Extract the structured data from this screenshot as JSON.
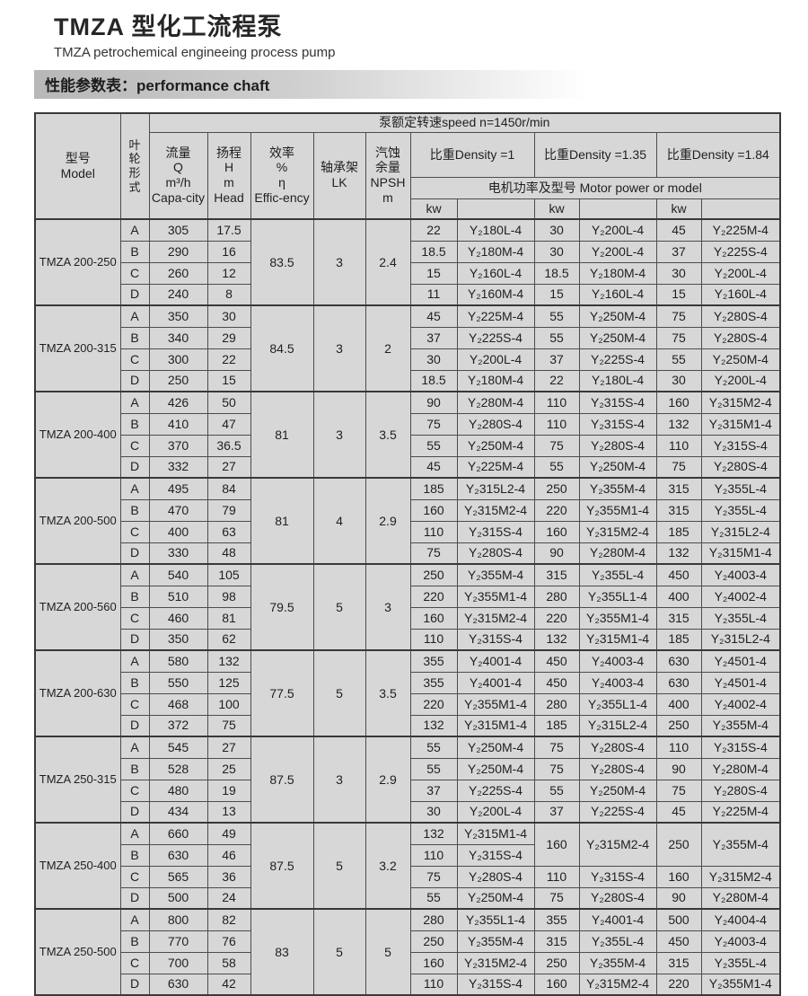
{
  "page": {
    "title": "TMZA 型化工流程泵",
    "subtitle": "TMZA petrochemical engineeing process pump",
    "section": "性能参数表：performance chaft"
  },
  "table": {
    "header": {
      "speed": "泵额定转速speed n=1450r/min",
      "model": "型号\nModel",
      "impeller": "叶\n轮\n形\n式",
      "capacity": "流量\nQ\nm³/h\nCapa-city",
      "head": "扬程\nH\nm\nHead",
      "efficiency": "效率\n%\nη\nEffic-ency",
      "bearing": "轴承架\nLK",
      "npsh": "汽蚀\n余量\nNPSH\nm",
      "density1": "比重Density =1",
      "density135": "比重Density =1.35",
      "density184": "比重Density =1.84",
      "motor": "电机功率及型号  Motor power or model",
      "kw": "kw",
      "model_col": ""
    },
    "blocks": [
      {
        "model": "TMZA 200-250",
        "eff": "83.5",
        "lk": "3",
        "npsh": "2.4",
        "rows": [
          {
            "imp": "A",
            "q": "305",
            "h": "17.5",
            "d1": [
              "22",
              "Y₂180L-4"
            ],
            "d135": [
              "30",
              "Y₂200L-4"
            ],
            "d184": [
              "45",
              "Y₂225M-4"
            ]
          },
          {
            "imp": "B",
            "q": "290",
            "h": "16",
            "d1": [
              "18.5",
              "Y₂180M-4"
            ],
            "d135": [
              "30",
              "Y₂200L-4"
            ],
            "d184": [
              "37",
              "Y₂225S-4"
            ]
          },
          {
            "imp": "C",
            "q": "260",
            "h": "12",
            "d1": [
              "15",
              "Y₂160L-4"
            ],
            "d135": [
              "18.5",
              "Y₂180M-4"
            ],
            "d184": [
              "30",
              "Y₂200L-4"
            ]
          },
          {
            "imp": "D",
            "q": "240",
            "h": "8",
            "d1": [
              "11",
              "Y₂160M-4"
            ],
            "d135": [
              "15",
              "Y₂160L-4"
            ],
            "d184": [
              "15",
              "Y₂160L-4"
            ]
          }
        ]
      },
      {
        "model": "TMZA 200-315",
        "eff": "84.5",
        "lk": "3",
        "npsh": "2",
        "rows": [
          {
            "imp": "A",
            "q": "350",
            "h": "30",
            "d1": [
              "45",
              "Y₂225M-4"
            ],
            "d135": [
              "55",
              "Y₂250M-4"
            ],
            "d184": [
              "75",
              "Y₂280S-4"
            ]
          },
          {
            "imp": "B",
            "q": "340",
            "h": "29",
            "d1": [
              "37",
              "Y₂225S-4"
            ],
            "d135": [
              "55",
              "Y₂250M-4"
            ],
            "d184": [
              "75",
              "Y₂280S-4"
            ]
          },
          {
            "imp": "C",
            "q": "300",
            "h": "22",
            "d1": [
              "30",
              "Y₂200L-4"
            ],
            "d135": [
              "37",
              "Y₂225S-4"
            ],
            "d184": [
              "55",
              "Y₂250M-4"
            ]
          },
          {
            "imp": "D",
            "q": "250",
            "h": "15",
            "d1": [
              "18.5",
              "Y₂180M-4"
            ],
            "d135": [
              "22",
              "Y₂180L-4"
            ],
            "d184": [
              "30",
              "Y₂200L-4"
            ]
          }
        ]
      },
      {
        "model": "TMZA 200-400",
        "eff": "81",
        "lk": "3",
        "npsh": "3.5",
        "rows": [
          {
            "imp": "A",
            "q": "426",
            "h": "50",
            "d1": [
              "90",
              "Y₂280M-4"
            ],
            "d135": [
              "110",
              "Y₂315S-4"
            ],
            "d184": [
              "160",
              "Y₂315M2-4"
            ]
          },
          {
            "imp": "B",
            "q": "410",
            "h": "47",
            "d1": [
              "75",
              "Y₂280S-4"
            ],
            "d135": [
              "110",
              "Y₂315S-4"
            ],
            "d184": [
              "132",
              "Y₂315M1-4"
            ]
          },
          {
            "imp": "C",
            "q": "370",
            "h": "36.5",
            "d1": [
              "55",
              "Y₂250M-4"
            ],
            "d135": [
              "75",
              "Y₂280S-4"
            ],
            "d184": [
              "110",
              "Y₂315S-4"
            ]
          },
          {
            "imp": "D",
            "q": "332",
            "h": "27",
            "d1": [
              "45",
              "Y₂225M-4"
            ],
            "d135": [
              "55",
              "Y₂250M-4"
            ],
            "d184": [
              "75",
              "Y₂280S-4"
            ]
          }
        ]
      },
      {
        "model": "TMZA 200-500",
        "eff": "81",
        "lk": "4",
        "npsh": "2.9",
        "rows": [
          {
            "imp": "A",
            "q": "495",
            "h": "84",
            "d1": [
              "185",
              "Y₂315L2-4"
            ],
            "d135": [
              "250",
              "Y₂355M-4"
            ],
            "d184": [
              "315",
              "Y₂355L-4"
            ]
          },
          {
            "imp": "B",
            "q": "470",
            "h": "79",
            "d1": [
              "160",
              "Y₂315M2-4"
            ],
            "d135": [
              "220",
              "Y₂355M1-4"
            ],
            "d184": [
              "315",
              "Y₂355L-4"
            ]
          },
          {
            "imp": "C",
            "q": "400",
            "h": "63",
            "d1": [
              "110",
              "Y₂315S-4"
            ],
            "d135": [
              "160",
              "Y₂315M2-4"
            ],
            "d184": [
              "185",
              "Y₂315L2-4"
            ]
          },
          {
            "imp": "D",
            "q": "330",
            "h": "48",
            "d1": [
              "75",
              "Y₂280S-4"
            ],
            "d135": [
              "90",
              "Y₂280M-4"
            ],
            "d184": [
              "132",
              "Y₂315M1-4"
            ]
          }
        ]
      },
      {
        "model": "TMZA 200-560",
        "eff": "79.5",
        "lk": "5",
        "npsh": "3",
        "rows": [
          {
            "imp": "A",
            "q": "540",
            "h": "105",
            "d1": [
              "250",
              "Y₂355M-4"
            ],
            "d135": [
              "315",
              "Y₂355L-4"
            ],
            "d184": [
              "450",
              "Y₂4003-4"
            ]
          },
          {
            "imp": "B",
            "q": "510",
            "h": "98",
            "d1": [
              "220",
              "Y₂355M1-4"
            ],
            "d135": [
              "280",
              "Y₂355L1-4"
            ],
            "d184": [
              "400",
              "Y₂4002-4"
            ]
          },
          {
            "imp": "C",
            "q": "460",
            "h": "81",
            "d1": [
              "160",
              "Y₂315M2-4"
            ],
            "d135": [
              "220",
              "Y₂355M1-4"
            ],
            "d184": [
              "315",
              "Y₂355L-4"
            ]
          },
          {
            "imp": "D",
            "q": "350",
            "h": "62",
            "d1": [
              "110",
              "Y₂315S-4"
            ],
            "d135": [
              "132",
              "Y₂315M1-4"
            ],
            "d184": [
              "185",
              "Y₂315L2-4"
            ]
          }
        ]
      },
      {
        "model": "TMZA 200-630",
        "eff": "77.5",
        "lk": "5",
        "npsh": "3.5",
        "rows": [
          {
            "imp": "A",
            "q": "580",
            "h": "132",
            "d1": [
              "355",
              "Y₂4001-4"
            ],
            "d135": [
              "450",
              "Y₂4003-4"
            ],
            "d184": [
              "630",
              "Y₂4501-4"
            ]
          },
          {
            "imp": "B",
            "q": "550",
            "h": "125",
            "d1": [
              "355",
              "Y₂4001-4"
            ],
            "d135": [
              "450",
              "Y₂4003-4"
            ],
            "d184": [
              "630",
              "Y₂4501-4"
            ]
          },
          {
            "imp": "C",
            "q": "468",
            "h": "100",
            "d1": [
              "220",
              "Y₂355M1-4"
            ],
            "d135": [
              "280",
              "Y₂355L1-4"
            ],
            "d184": [
              "400",
              "Y₂4002-4"
            ]
          },
          {
            "imp": "D",
            "q": "372",
            "h": "75",
            "d1": [
              "132",
              "Y₂315M1-4"
            ],
            "d135": [
              "185",
              "Y₂315L2-4"
            ],
            "d184": [
              "250",
              "Y₂355M-4"
            ]
          }
        ]
      },
      {
        "model": "TMZA 250-315",
        "eff": "87.5",
        "lk": "3",
        "npsh": "2.9",
        "rows": [
          {
            "imp": "A",
            "q": "545",
            "h": "27",
            "d1": [
              "55",
              "Y₂250M-4"
            ],
            "d135": [
              "75",
              "Y₂280S-4"
            ],
            "d184": [
              "110",
              "Y₂315S-4"
            ]
          },
          {
            "imp": "B",
            "q": "528",
            "h": "25",
            "d1": [
              "55",
              "Y₂250M-4"
            ],
            "d135": [
              "75",
              "Y₂280S-4"
            ],
            "d184": [
              "90",
              "Y₂280M-4"
            ]
          },
          {
            "imp": "C",
            "q": "480",
            "h": "19",
            "d1": [
              "37",
              "Y₂225S-4"
            ],
            "d135": [
              "55",
              "Y₂250M-4"
            ],
            "d184": [
              "75",
              "Y₂280S-4"
            ]
          },
          {
            "imp": "D",
            "q": "434",
            "h": "13",
            "d1": [
              "30",
              "Y₂200L-4"
            ],
            "d135": [
              "37",
              "Y₂225S-4"
            ],
            "d184": [
              "45",
              "Y₂225M-4"
            ]
          }
        ]
      },
      {
        "model": "TMZA 250-400",
        "eff": "87.5",
        "lk": "5",
        "npsh": "3.2",
        "rows": [
          {
            "imp": "A",
            "q": "660",
            "h": "49",
            "d1": [
              "132",
              "Y₂315M1-4"
            ],
            "d135": [
              "160",
              "Y₂315M2-4",
              2
            ],
            "d184": [
              "250",
              "Y₂355M-4",
              2
            ]
          },
          {
            "imp": "B",
            "q": "630",
            "h": "46",
            "d1": [
              "110",
              "Y₂315S-4"
            ],
            "d135": null,
            "d184": null
          },
          {
            "imp": "C",
            "q": "565",
            "h": "36",
            "d1": [
              "75",
              "Y₂280S-4"
            ],
            "d135": [
              "110",
              "Y₂315S-4"
            ],
            "d184": [
              "160",
              "Y₂315M2-4"
            ]
          },
          {
            "imp": "D",
            "q": "500",
            "h": "24",
            "d1": [
              "55",
              "Y₂250M-4"
            ],
            "d135": [
              "75",
              "Y₂280S-4"
            ],
            "d184": [
              "90",
              "Y₂280M-4"
            ]
          }
        ]
      },
      {
        "model": "TMZA 250-500",
        "eff": "83",
        "lk": "5",
        "npsh": "5",
        "rows": [
          {
            "imp": "A",
            "q": "800",
            "h": "82",
            "d1": [
              "280",
              "Y₂355L1-4"
            ],
            "d135": [
              "355",
              "Y₂4001-4"
            ],
            "d184": [
              "500",
              "Y₂4004-4"
            ]
          },
          {
            "imp": "B",
            "q": "770",
            "h": "76",
            "d1": [
              "250",
              "Y₂355M-4"
            ],
            "d135": [
              "315",
              "Y₂355L-4"
            ],
            "d184": [
              "450",
              "Y₂4003-4"
            ]
          },
          {
            "imp": "C",
            "q": "700",
            "h": "58",
            "d1": [
              "160",
              "Y₂315M2-4"
            ],
            "d135": [
              "250",
              "Y₂355M-4"
            ],
            "d184": [
              "315",
              "Y₂355L-4"
            ]
          },
          {
            "imp": "D",
            "q": "630",
            "h": "42",
            "d1": [
              "110",
              "Y₂315S-4"
            ],
            "d135": [
              "160",
              "Y₂315M2-4"
            ],
            "d184": [
              "220",
              "Y₂355M1-4"
            ]
          }
        ]
      }
    ]
  }
}
